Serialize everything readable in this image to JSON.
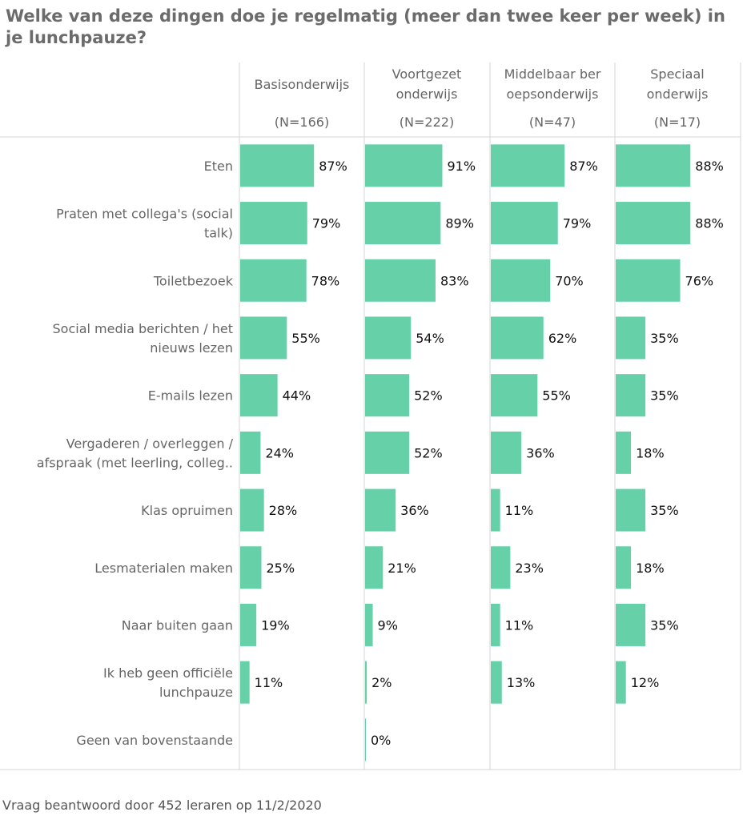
{
  "title": "Welke van deze dingen doe je regelmatig (meer dan twee keer per week) in je lunchpauze?",
  "footer": "Vraag beantwoord door 452 leraren op 11/2/2020",
  "colors": {
    "bar": "#66d1a8",
    "grid": "#d6d6d6",
    "text": "#666666"
  },
  "chart_data": {
    "type": "bar",
    "orientation": "horizontal",
    "value_unit": "%",
    "xlim": [
      0,
      100
    ],
    "grid": false,
    "columns": [
      {
        "name": [
          "Basisonderwijs"
        ],
        "n": "(N=166)"
      },
      {
        "name": [
          "Voortgezet",
          "onderwijs"
        ],
        "n": "(N=222)"
      },
      {
        "name": [
          "Middelbaar ber",
          "oepsonderwijs"
        ],
        "n": "(N=47)"
      },
      {
        "name": [
          "Speciaal",
          "onderwijs"
        ],
        "n": "(N=17)"
      }
    ],
    "categories": [
      [
        "Eten"
      ],
      [
        "Praten met collega's (social",
        "talk)"
      ],
      [
        "Toiletbezoek"
      ],
      [
        "Social media berichten / het",
        "nieuws  lezen"
      ],
      [
        "E-mails lezen"
      ],
      [
        "Vergaderen / overleggen /",
        "afspraak (met leerling, colleg.."
      ],
      [
        "Klas opruimen"
      ],
      [
        "Lesmaterialen maken"
      ],
      [
        "Naar buiten gaan"
      ],
      [
        "Ik heb geen officiële",
        "lunchpauze"
      ],
      [
        "Geen van bovenstaande"
      ]
    ],
    "series": [
      {
        "name": "Basisonderwijs",
        "values": [
          87,
          79,
          78,
          55,
          44,
          24,
          28,
          25,
          19,
          11,
          null
        ]
      },
      {
        "name": "Voortgezet onderwijs",
        "values": [
          91,
          89,
          83,
          54,
          52,
          52,
          36,
          21,
          9,
          2,
          0
        ]
      },
      {
        "name": "Middelbaar beroepsonderwijs",
        "values": [
          87,
          79,
          70,
          62,
          55,
          36,
          11,
          23,
          11,
          13,
          null
        ]
      },
      {
        "name": "Speciaal onderwijs",
        "values": [
          88,
          88,
          76,
          35,
          35,
          18,
          35,
          18,
          35,
          12,
          null
        ]
      }
    ]
  }
}
